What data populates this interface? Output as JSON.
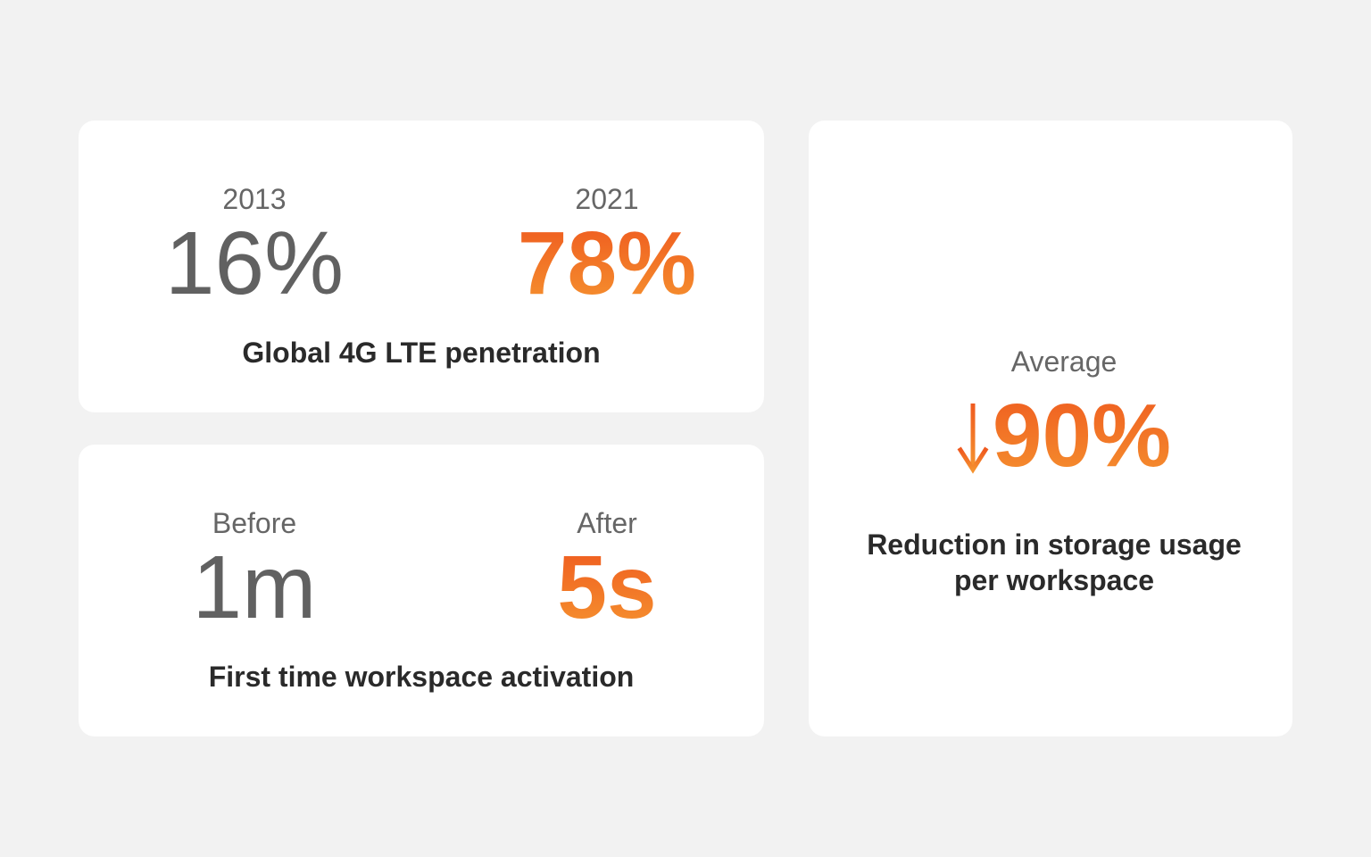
{
  "colors": {
    "background": "#f2f2f2",
    "card": "#ffffff",
    "accent_start": "#ef5a1f",
    "accent_end": "#f5922f",
    "muted_value": "#616161",
    "label": "#666666",
    "caption": "#2a2a2a"
  },
  "lte_card": {
    "left_label": "2013",
    "left_value": "16%",
    "right_label": "2021",
    "right_value": "78%",
    "caption": "Global 4G LTE penetration"
  },
  "activation_card": {
    "left_label": "Before",
    "left_value": "1m",
    "right_label": "After",
    "right_value": "5s",
    "caption": "First time workspace activation"
  },
  "storage_card": {
    "label": "Average",
    "arrow_icon": "arrow-down-icon",
    "value": "90%",
    "caption_line1": "Reduction in storage usage",
    "caption_line2": "per workspace"
  }
}
